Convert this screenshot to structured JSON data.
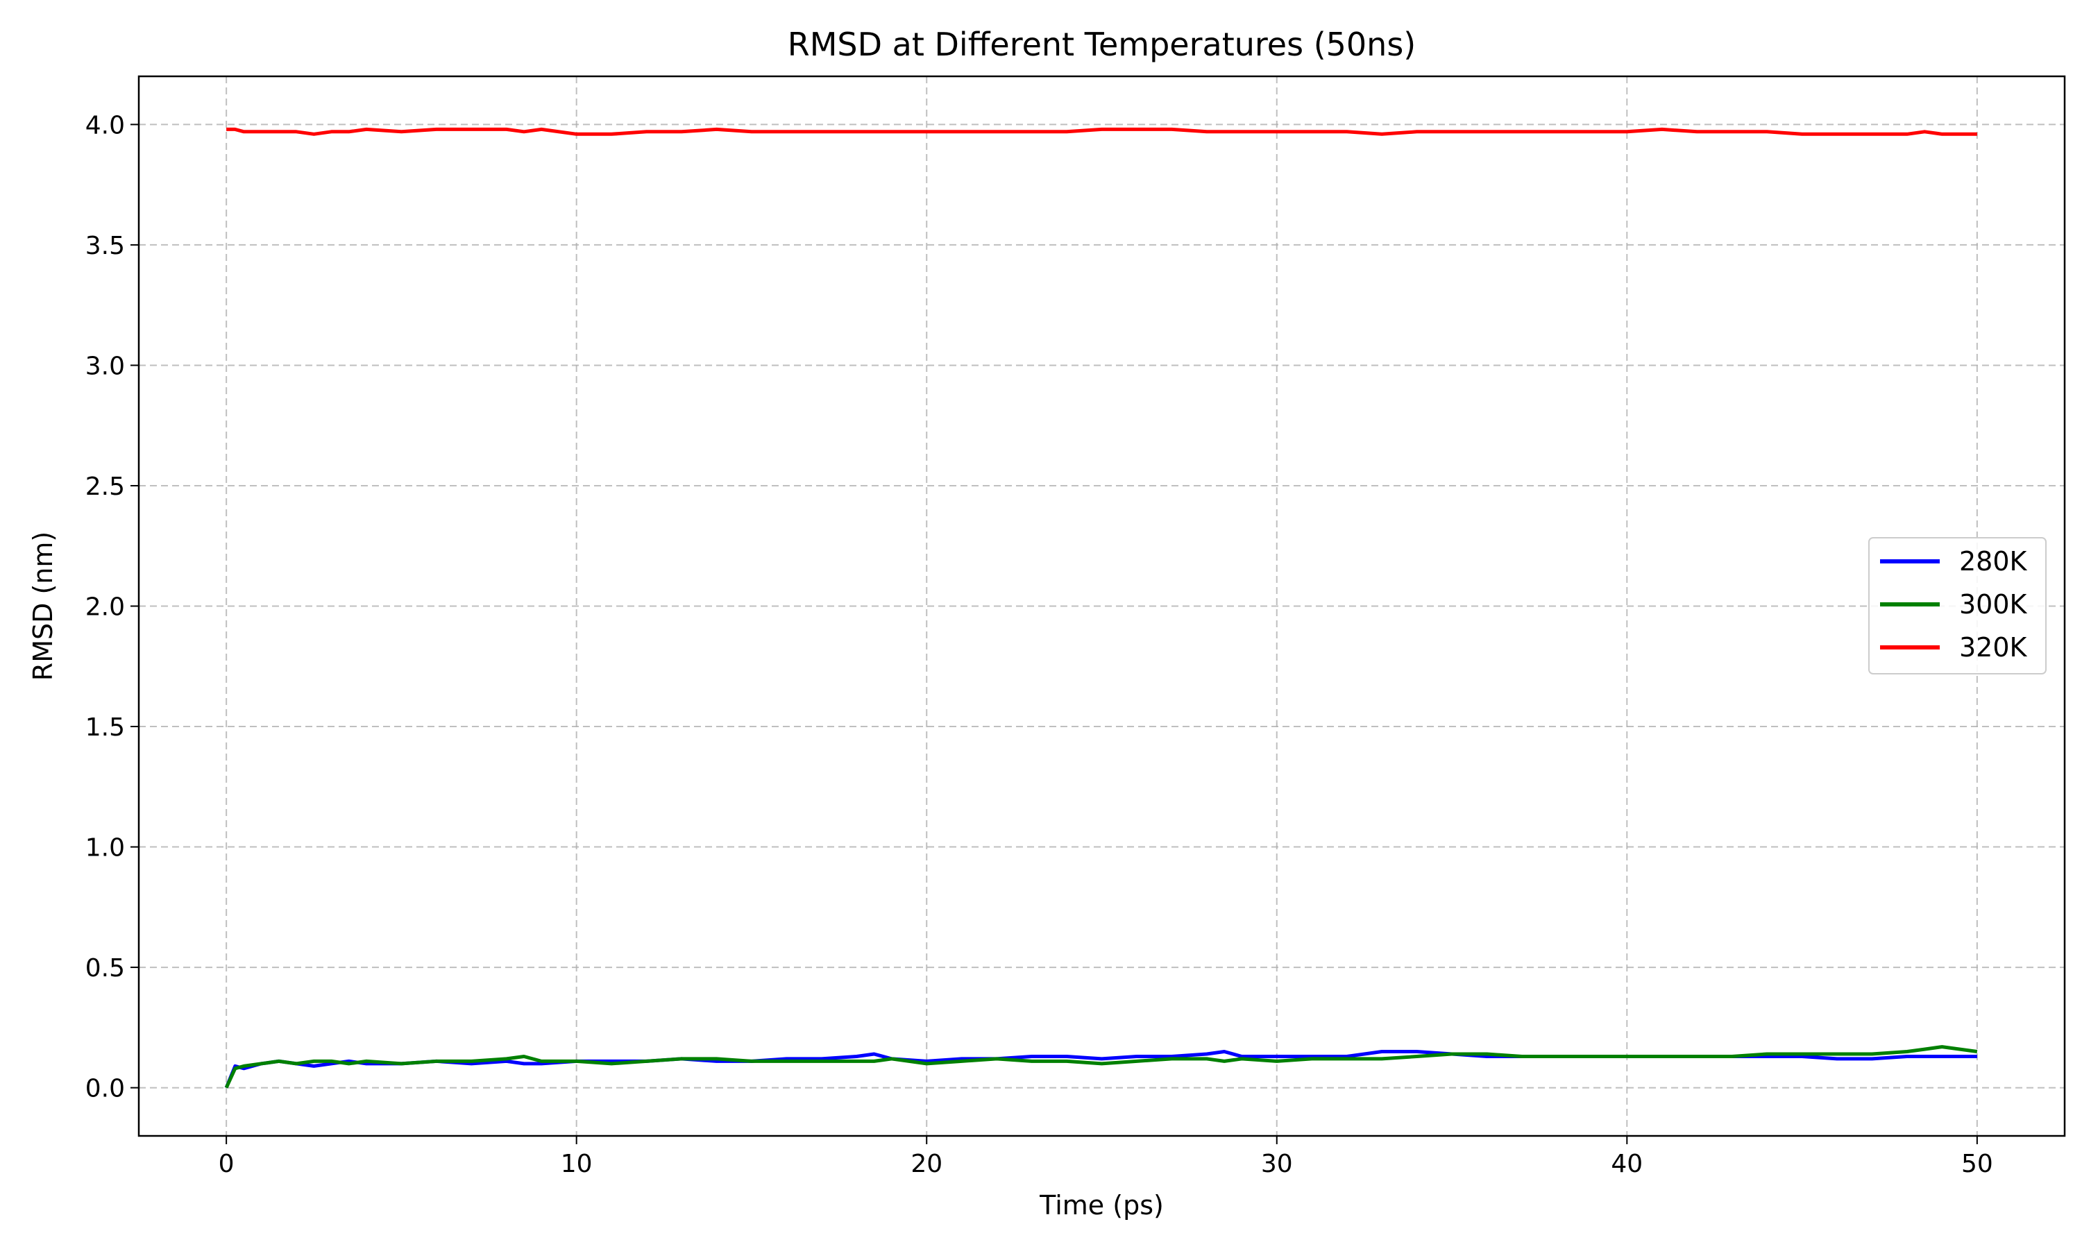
{
  "chart_data": {
    "type": "line",
    "title": "RMSD at Different Temperatures (50ns)",
    "xlabel": "Time (ps)",
    "ylabel": "RMSD (nm)",
    "xlim": [
      -2.5,
      52.5
    ],
    "ylim": [
      -0.2,
      4.2
    ],
    "xticks": [
      0,
      10,
      20,
      30,
      40,
      50
    ],
    "xtick_labels": [
      "0",
      "10",
      "20",
      "30",
      "40",
      "50"
    ],
    "yticks": [
      0.0,
      0.5,
      1.0,
      1.5,
      2.0,
      2.5,
      3.0,
      3.5,
      4.0
    ],
    "ytick_labels": [
      "0.0",
      "0.5",
      "1.0",
      "1.5",
      "2.0",
      "2.5",
      "3.0",
      "3.5",
      "4.0"
    ],
    "grid": true,
    "legend_position": "center-right",
    "x": [
      0,
      0.25,
      0.5,
      1,
      1.5,
      2,
      2.5,
      3,
      3.5,
      4,
      5,
      6,
      7,
      8,
      8.5,
      9,
      10,
      11,
      12,
      13,
      14,
      15,
      16,
      17,
      18,
      18.5,
      19,
      20,
      21,
      22,
      23,
      24,
      25,
      26,
      27,
      28,
      28.5,
      29,
      30,
      31,
      32,
      33,
      34,
      35,
      36,
      37,
      38,
      39,
      40,
      41,
      42,
      43,
      44,
      45,
      46,
      47,
      48,
      48.5,
      49,
      50
    ],
    "series": [
      {
        "name": "280K",
        "color": "#0000ff",
        "values": [
          0.0,
          0.09,
          0.08,
          0.1,
          0.11,
          0.1,
          0.09,
          0.1,
          0.11,
          0.1,
          0.1,
          0.11,
          0.1,
          0.11,
          0.1,
          0.1,
          0.11,
          0.11,
          0.11,
          0.12,
          0.11,
          0.11,
          0.12,
          0.12,
          0.13,
          0.14,
          0.12,
          0.11,
          0.12,
          0.12,
          0.13,
          0.13,
          0.12,
          0.13,
          0.13,
          0.14,
          0.15,
          0.13,
          0.13,
          0.13,
          0.13,
          0.15,
          0.15,
          0.14,
          0.13,
          0.13,
          0.13,
          0.13,
          0.13,
          0.13,
          0.13,
          0.13,
          0.13,
          0.13,
          0.12,
          0.12,
          0.13,
          0.13,
          0.13,
          0.13
        ]
      },
      {
        "name": "300K",
        "color": "#008000",
        "values": [
          0.0,
          0.08,
          0.09,
          0.1,
          0.11,
          0.1,
          0.11,
          0.11,
          0.1,
          0.11,
          0.1,
          0.11,
          0.11,
          0.12,
          0.13,
          0.11,
          0.11,
          0.1,
          0.11,
          0.12,
          0.12,
          0.11,
          0.11,
          0.11,
          0.11,
          0.11,
          0.12,
          0.1,
          0.11,
          0.12,
          0.11,
          0.11,
          0.1,
          0.11,
          0.12,
          0.12,
          0.11,
          0.12,
          0.11,
          0.12,
          0.12,
          0.12,
          0.13,
          0.14,
          0.14,
          0.13,
          0.13,
          0.13,
          0.13,
          0.13,
          0.13,
          0.13,
          0.14,
          0.14,
          0.14,
          0.14,
          0.15,
          0.16,
          0.17,
          0.15
        ]
      },
      {
        "name": "320K",
        "color": "#ff0000",
        "values": [
          3.98,
          3.98,
          3.97,
          3.97,
          3.97,
          3.97,
          3.96,
          3.97,
          3.97,
          3.98,
          3.97,
          3.98,
          3.98,
          3.98,
          3.97,
          3.98,
          3.96,
          3.96,
          3.97,
          3.97,
          3.98,
          3.97,
          3.97,
          3.97,
          3.97,
          3.97,
          3.97,
          3.97,
          3.97,
          3.97,
          3.97,
          3.97,
          3.98,
          3.98,
          3.98,
          3.97,
          3.97,
          3.97,
          3.97,
          3.97,
          3.97,
          3.96,
          3.97,
          3.97,
          3.97,
          3.97,
          3.97,
          3.97,
          3.97,
          3.98,
          3.97,
          3.97,
          3.97,
          3.96,
          3.96,
          3.96,
          3.96,
          3.97,
          3.96,
          3.96
        ]
      }
    ]
  }
}
